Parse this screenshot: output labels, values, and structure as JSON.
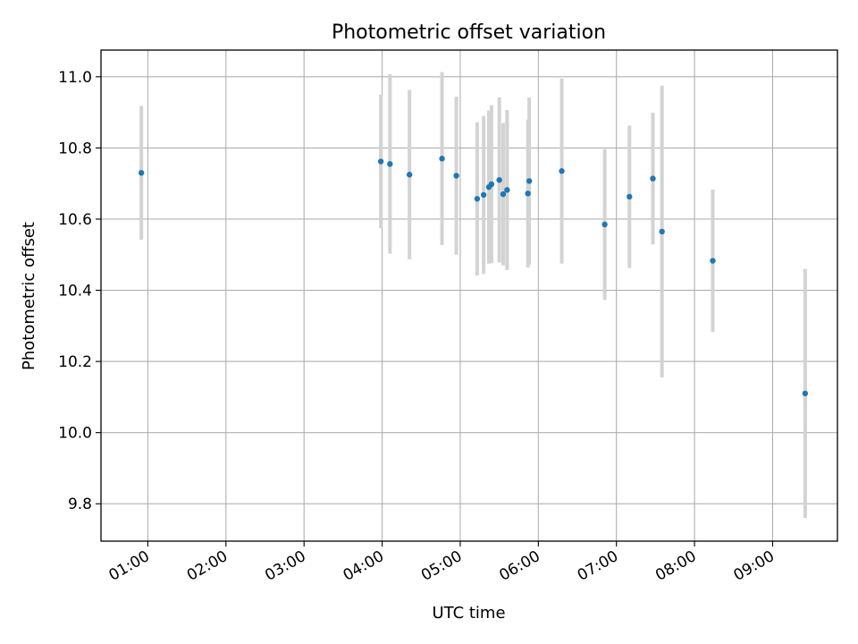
{
  "chart_data": {
    "type": "scatter",
    "title": "Photometric offset variation",
    "xlabel": "UTC time",
    "ylabel": "Photometric offset",
    "x_range_hours": [
      0.4,
      9.83
    ],
    "ylim": [
      9.695,
      11.075
    ],
    "grid": true,
    "x_ticks": [
      {
        "h": 1,
        "label": "01:00"
      },
      {
        "h": 2,
        "label": "02:00"
      },
      {
        "h": 3,
        "label": "03:00"
      },
      {
        "h": 4,
        "label": "04:00"
      },
      {
        "h": 5,
        "label": "05:00"
      },
      {
        "h": 6,
        "label": "06:00"
      },
      {
        "h": 7,
        "label": "07:00"
      },
      {
        "h": 8,
        "label": "08:00"
      },
      {
        "h": 9,
        "label": "09:00"
      }
    ],
    "y_ticks": [
      {
        "v": 9.8,
        "label": "9.8"
      },
      {
        "v": 10.0,
        "label": "10.0"
      },
      {
        "v": 10.2,
        "label": "10.2"
      },
      {
        "v": 10.4,
        "label": "10.4"
      },
      {
        "v": 10.6,
        "label": "10.6"
      },
      {
        "v": 10.8,
        "label": "10.8"
      },
      {
        "v": 11.0,
        "label": "11.0"
      }
    ],
    "colors": {
      "marker": "#1f77b4",
      "errorbar": "#d3d3d3",
      "grid": "#b0b0b0"
    },
    "points": [
      {
        "t": "00:55",
        "y": 10.73,
        "err": 0.188
      },
      {
        "t": "03:59",
        "y": 10.762,
        "err": 0.188
      },
      {
        "t": "04:06",
        "y": 10.755,
        "err": 0.252
      },
      {
        "t": "04:21",
        "y": 10.725,
        "err": 0.238
      },
      {
        "t": "04:46",
        "y": 10.77,
        "err": 0.243
      },
      {
        "t": "04:57",
        "y": 10.722,
        "err": 0.222
      },
      {
        "t": "05:13",
        "y": 10.657,
        "err": 0.215
      },
      {
        "t": "05:18",
        "y": 10.668,
        "err": 0.222
      },
      {
        "t": "05:22",
        "y": 10.69,
        "err": 0.215
      },
      {
        "t": "05:24",
        "y": 10.698,
        "err": 0.222
      },
      {
        "t": "05:30",
        "y": 10.71,
        "err": 0.232
      },
      {
        "t": "05:33",
        "y": 10.67,
        "err": 0.2
      },
      {
        "t": "05:36",
        "y": 10.682,
        "err": 0.225
      },
      {
        "t": "05:52",
        "y": 10.672,
        "err": 0.208
      },
      {
        "t": "05:53",
        "y": 10.707,
        "err": 0.235
      },
      {
        "t": "06:18",
        "y": 10.735,
        "err": 0.26
      },
      {
        "t": "06:51",
        "y": 10.585,
        "err": 0.212
      },
      {
        "t": "07:10",
        "y": 10.663,
        "err": 0.2
      },
      {
        "t": "07:28",
        "y": 10.714,
        "err": 0.185
      },
      {
        "t": "07:35",
        "y": 10.565,
        "err": 0.41
      },
      {
        "t": "08:14",
        "y": 10.483,
        "err": 0.2
      },
      {
        "t": "09:25",
        "y": 10.11,
        "err": 0.35
      }
    ]
  }
}
